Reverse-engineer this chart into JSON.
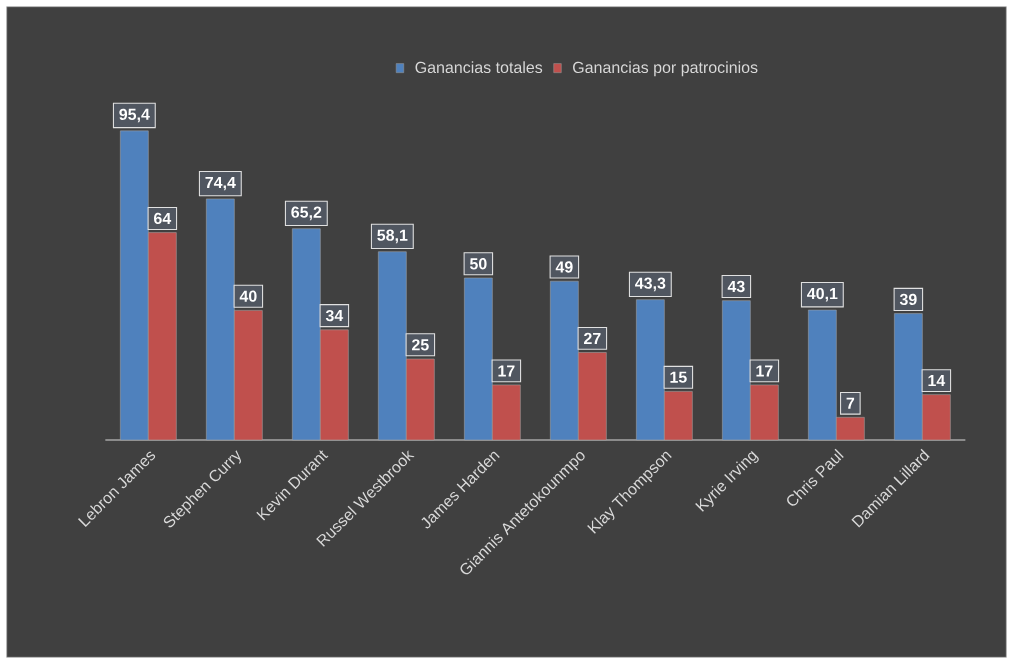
{
  "chart_data": {
    "type": "bar",
    "categories": [
      "Lebron James",
      "Stephen Curry",
      "Kevin Durant",
      "Russel Westbrook",
      "James Harden",
      "Giannis Antetokounmpo",
      "Klay Thompson",
      "Kyrie Irving",
      "Chris Paul",
      "Damian Lillard"
    ],
    "series": [
      {
        "name": "Ganancias totales",
        "color": "#4f81bd",
        "values": [
          95.4,
          74.4,
          65.2,
          58.1,
          50,
          49,
          43.3,
          43,
          40.1,
          39
        ],
        "value_labels": [
          "95,4",
          "74,4",
          "65,2",
          "58,1",
          "50",
          "49",
          "43,3",
          "43",
          "40,1",
          "39"
        ]
      },
      {
        "name": "Ganancias por patrocinios",
        "color": "#c0504d",
        "values": [
          64,
          40,
          34,
          25,
          17,
          27,
          15,
          17,
          7,
          14
        ],
        "value_labels": [
          "64",
          "40",
          "34",
          "25",
          "17",
          "27",
          "15",
          "17",
          "7",
          "14"
        ]
      }
    ],
    "legend": "top"
  }
}
